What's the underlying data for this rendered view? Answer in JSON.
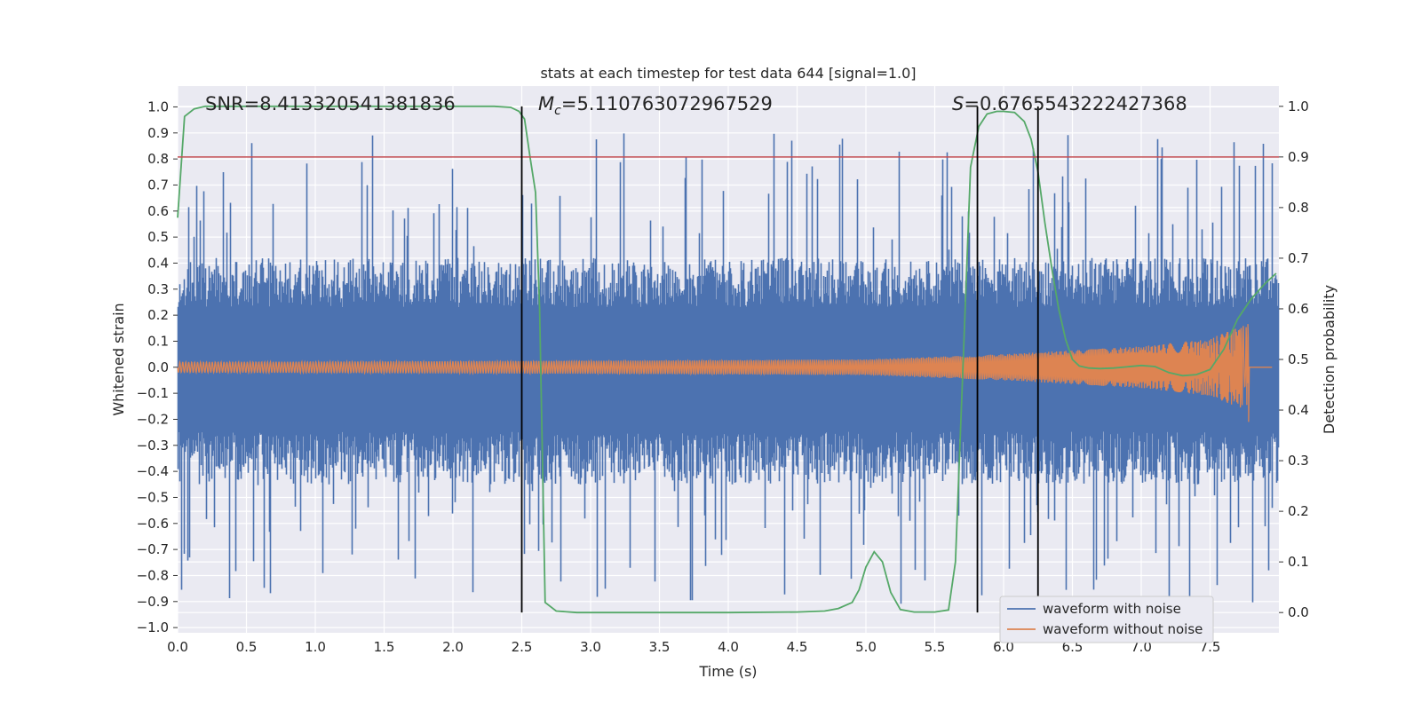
{
  "chart_data": {
    "type": "line",
    "title": "stats at each timestep for test data 644 [signal=1.0]",
    "xlabel": "Time (s)",
    "ylabel": "Whitened strain",
    "ylabel_right": "Detection probability",
    "xlim": [
      0.0,
      8.0
    ],
    "ylim": [
      -1.02,
      1.08
    ],
    "ylim_right": [
      -0.04,
      1.04
    ],
    "x_ticks": [
      0.0,
      0.5,
      1.0,
      1.5,
      2.0,
      2.5,
      3.0,
      3.5,
      4.0,
      4.5,
      5.0,
      5.5,
      6.0,
      6.5,
      7.0,
      7.5
    ],
    "x_tick_labels": [
      "0.0",
      "0.5",
      "1.0",
      "1.5",
      "2.0",
      "2.5",
      "3.0",
      "3.5",
      "4.0",
      "4.5",
      "5.0",
      "5.5",
      "6.0",
      "6.5",
      "7.0",
      "7.5"
    ],
    "y_ticks": [
      -1.0,
      -0.9,
      -0.8,
      -0.7,
      -0.6,
      -0.5,
      -0.4,
      -0.3,
      -0.2,
      -0.1,
      0.0,
      0.1,
      0.2,
      0.3,
      0.4,
      0.5,
      0.6,
      0.7,
      0.8,
      0.9,
      1.0
    ],
    "y_tick_labels": [
      "−1.0",
      "−0.9",
      "−0.8",
      "−0.7",
      "−0.6",
      "−0.5",
      "−0.4",
      "−0.3",
      "−0.2",
      "−0.1",
      "0.0",
      "0.1",
      "0.2",
      "0.3",
      "0.4",
      "0.5",
      "0.6",
      "0.7",
      "0.8",
      "0.9",
      "1.0"
    ],
    "y2_ticks": [
      0.0,
      0.1,
      0.2,
      0.3,
      0.4,
      0.5,
      0.6,
      0.7,
      0.8,
      0.9,
      1.0
    ],
    "y2_tick_labels": [
      "0.0",
      "0.1",
      "0.2",
      "0.3",
      "0.4",
      "0.5",
      "0.6",
      "0.7",
      "0.8",
      "0.9",
      "1.0"
    ],
    "grid": true,
    "legend_position": "bottom-right",
    "series": [
      {
        "name": "waveform with noise",
        "color": "#4c72b0",
        "axis": "left",
        "approx_envelope": {
          "typical_upper": 0.42,
          "typical_lower": -0.45,
          "max_peak": 0.9,
          "min_peak": -0.92
        }
      },
      {
        "name": "waveform without noise",
        "color": "#dd8452",
        "axis": "left",
        "start_time": 0.0,
        "end_time": 7.78,
        "amplitude_points": [
          [
            0.0,
            0.02
          ],
          [
            3.0,
            0.025
          ],
          [
            5.0,
            0.03
          ],
          [
            6.0,
            0.05
          ],
          [
            7.0,
            0.08
          ],
          [
            7.5,
            0.11
          ],
          [
            7.78,
            0.17
          ]
        ],
        "chirp_min_amplitude": -0.21
      },
      {
        "name": "detection probability",
        "color": "#55a868",
        "axis": "right",
        "x": [
          0.0,
          0.05,
          0.12,
          0.2,
          0.4,
          0.8,
          1.5,
          2.0,
          2.3,
          2.42,
          2.48,
          2.52,
          2.56,
          2.6,
          2.63,
          2.67,
          2.75,
          2.9,
          3.5,
          4.0,
          4.5,
          4.7,
          4.8,
          4.9,
          4.95,
          5.0,
          5.06,
          5.12,
          5.18,
          5.25,
          5.35,
          5.5,
          5.6,
          5.65,
          5.7,
          5.76,
          5.82,
          5.88,
          5.95,
          6.0,
          6.08,
          6.15,
          6.2,
          6.25,
          6.3,
          6.35,
          6.4,
          6.45,
          6.5,
          6.55,
          6.62,
          6.7,
          6.8,
          7.0,
          7.1,
          7.15,
          7.2,
          7.3,
          7.4,
          7.5,
          7.6,
          7.7,
          7.8,
          7.9,
          7.98
        ],
        "y": [
          0.78,
          0.98,
          0.995,
          1.0,
          1.0,
          1.0,
          1.0,
          1.0,
          1.0,
          0.998,
          0.99,
          0.975,
          0.9,
          0.83,
          0.6,
          0.02,
          0.003,
          0.0,
          0.0,
          0.0,
          0.001,
          0.003,
          0.008,
          0.02,
          0.045,
          0.09,
          0.12,
          0.1,
          0.04,
          0.006,
          0.001,
          0.001,
          0.005,
          0.1,
          0.45,
          0.88,
          0.96,
          0.985,
          0.99,
          0.99,
          0.988,
          0.97,
          0.935,
          0.87,
          0.77,
          0.68,
          0.6,
          0.54,
          0.5,
          0.487,
          0.483,
          0.482,
          0.483,
          0.488,
          0.486,
          0.48,
          0.474,
          0.468,
          0.47,
          0.48,
          0.52,
          0.58,
          0.62,
          0.65,
          0.67
        ]
      }
    ],
    "hlines": [
      {
        "y2": 0.9,
        "color": "#c44e52"
      }
    ],
    "vlines": [
      {
        "x": 2.5,
        "color": "#000000",
        "y2_range": [
          0.0,
          1.0
        ]
      },
      {
        "x": 5.81,
        "color": "#000000",
        "y2_range": [
          0.0,
          1.0
        ]
      },
      {
        "x": 6.25,
        "color": "#000000",
        "y2_range": [
          0.0,
          1.0
        ]
      }
    ],
    "annotations": [
      {
        "id": "snr",
        "prefix": "SNR",
        "value": "8.413320541381836"
      },
      {
        "id": "mc",
        "prefix": "M",
        "subscript": "c",
        "value": "5.110763072967529"
      },
      {
        "id": "s",
        "prefix": "S",
        "value": "0.6765543222427368"
      }
    ],
    "legend": [
      "waveform with noise",
      "waveform without noise"
    ],
    "colors": {
      "background": "#eaeaf2",
      "grid": "#ffffff",
      "noise": "#4c72b0",
      "clean": "#dd8452",
      "probability": "#55a868",
      "threshold": "#c44e52",
      "vline": "#000000"
    }
  }
}
